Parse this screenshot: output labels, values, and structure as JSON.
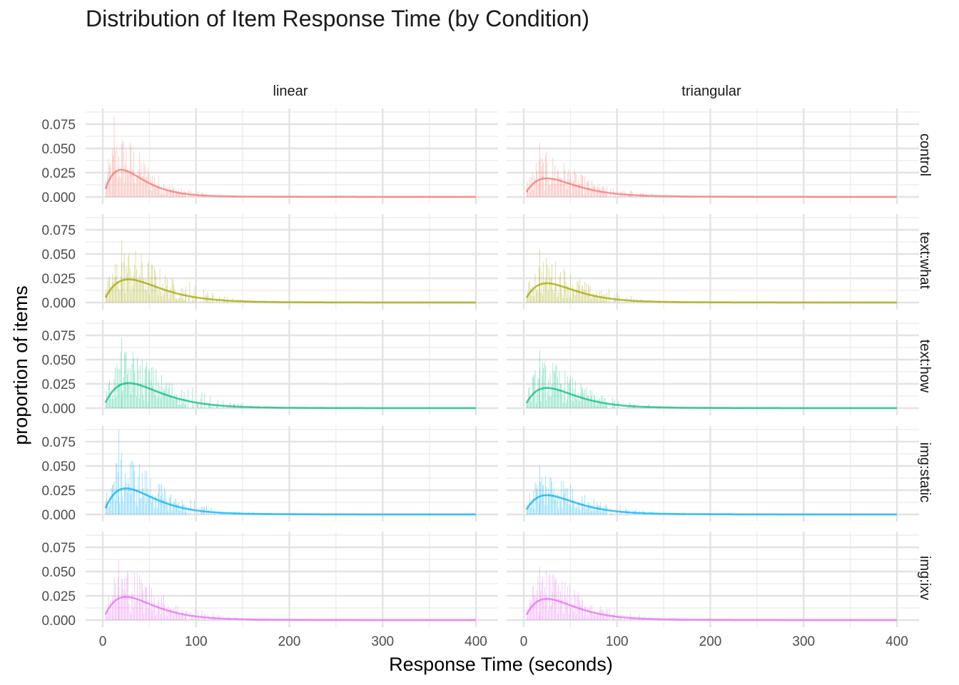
{
  "title": "Distribution of Item Response Time (by Condition)",
  "chart_data": {
    "type": "histogram_with_density",
    "title": "Distribution of Item Response Time (by Condition)",
    "xlabel": "Response Time (seconds)",
    "ylabel": "proportion of items",
    "xlim": [
      0,
      400
    ],
    "ylim": [
      0,
      0.085
    ],
    "x_ticks": [
      "0",
      "100",
      "200",
      "300",
      "400"
    ],
    "y_ticks": [
      "0.000",
      "0.025",
      "0.050",
      "0.075"
    ],
    "x_tick_values": [
      0,
      100,
      200,
      300,
      400
    ],
    "y_tick_values": [
      0,
      0.025,
      0.05,
      0.075
    ],
    "grid": true,
    "columns": [
      "linear",
      "triangular"
    ],
    "rows": [
      "control",
      "text:what",
      "text:how",
      "img:static",
      "img:ixv"
    ],
    "row_colors": [
      "#F8766D",
      "#A3A500",
      "#00BF7D",
      "#00B0F6",
      "#E76BF3"
    ],
    "panels": [
      {
        "row": "control",
        "col": "linear",
        "peak_x": 20,
        "peak_density": 0.027,
        "max_bar": 0.083,
        "scale": 20,
        "tail": 0.003
      },
      {
        "row": "control",
        "col": "triangular",
        "peak_x": 25,
        "peak_density": 0.018,
        "max_bar": 0.056,
        "scale": 35,
        "tail": 0.004
      },
      {
        "row": "text:what",
        "col": "linear",
        "peak_x": 28,
        "peak_density": 0.023,
        "max_bar": 0.065,
        "scale": 22,
        "tail": 0.003
      },
      {
        "row": "text:what",
        "col": "triangular",
        "peak_x": 25,
        "peak_density": 0.019,
        "max_bar": 0.055,
        "scale": 28,
        "tail": 0.003
      },
      {
        "row": "text:how",
        "col": "linear",
        "peak_x": 28,
        "peak_density": 0.025,
        "max_bar": 0.073,
        "scale": 22,
        "tail": 0.003
      },
      {
        "row": "text:how",
        "col": "triangular",
        "peak_x": 25,
        "peak_density": 0.02,
        "max_bar": 0.06,
        "scale": 28,
        "tail": 0.003
      },
      {
        "row": "img:static",
        "col": "linear",
        "peak_x": 25,
        "peak_density": 0.026,
        "max_bar": 0.088,
        "scale": 22,
        "tail": 0.003
      },
      {
        "row": "img:static",
        "col": "triangular",
        "peak_x": 25,
        "peak_density": 0.019,
        "max_bar": 0.05,
        "scale": 28,
        "tail": 0.003
      },
      {
        "row": "img:ixv",
        "col": "linear",
        "peak_x": 25,
        "peak_density": 0.023,
        "max_bar": 0.062,
        "scale": 22,
        "tail": 0.003
      },
      {
        "row": "img:ixv",
        "col": "triangular",
        "peak_x": 25,
        "peak_density": 0.021,
        "max_bar": 0.055,
        "scale": 25,
        "tail": 0.003
      }
    ]
  }
}
